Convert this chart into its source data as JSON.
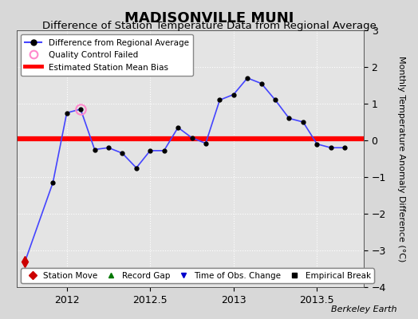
{
  "title": "MADISONVILLE MUNI",
  "subtitle": "Difference of Station Temperature Data from Regional Average",
  "ylabel": "Monthly Temperature Anomaly Difference (°C)",
  "xlim": [
    2011.7,
    2013.78
  ],
  "ylim": [
    -4,
    3
  ],
  "yticks": [
    -4,
    -3,
    -2,
    -1,
    0,
    1,
    2,
    3
  ],
  "xticks": [
    2012.0,
    2012.5,
    2013.0,
    2013.5
  ],
  "xticklabels": [
    "2012",
    "2012.5",
    "2013",
    "2013.5"
  ],
  "bias_value": 0.05,
  "line_color": "#4444ff",
  "line_marker_color": "#000000",
  "bias_color": "#ff0000",
  "background_color": "#d8d8d8",
  "plot_bg_color": "#e4e4e4",
  "watermark": "Berkeley Earth",
  "x_data": [
    2011.75,
    2011.917,
    2012.0,
    2012.083,
    2012.167,
    2012.25,
    2012.333,
    2012.417,
    2012.5,
    2012.583,
    2012.667,
    2012.75,
    2012.833,
    2012.917,
    2013.0,
    2013.083,
    2013.167,
    2013.25,
    2013.333,
    2013.417,
    2013.5,
    2013.583,
    2013.667
  ],
  "y_data": [
    -3.3,
    -1.15,
    0.75,
    0.85,
    -0.25,
    -0.2,
    -0.35,
    -0.75,
    -0.28,
    -0.28,
    0.35,
    0.07,
    -0.08,
    1.1,
    1.25,
    1.7,
    1.55,
    1.1,
    0.6,
    0.5,
    -0.1,
    -0.2,
    -0.2
  ],
  "qc_failed_x": [
    2012.083
  ],
  "qc_failed_y": [
    0.85
  ],
  "station_move_x": [
    2011.75
  ],
  "station_move_y": [
    -3.3
  ],
  "title_fontsize": 13,
  "subtitle_fontsize": 9.5,
  "tick_fontsize": 9,
  "ylabel_fontsize": 8,
  "grid_color": "#ffffff",
  "legend1_labels": [
    "Difference from Regional Average",
    "Quality Control Failed",
    "Estimated Station Mean Bias"
  ],
  "legend2_labels": [
    "Station Move",
    "Record Gap",
    "Time of Obs. Change",
    "Empirical Break"
  ]
}
